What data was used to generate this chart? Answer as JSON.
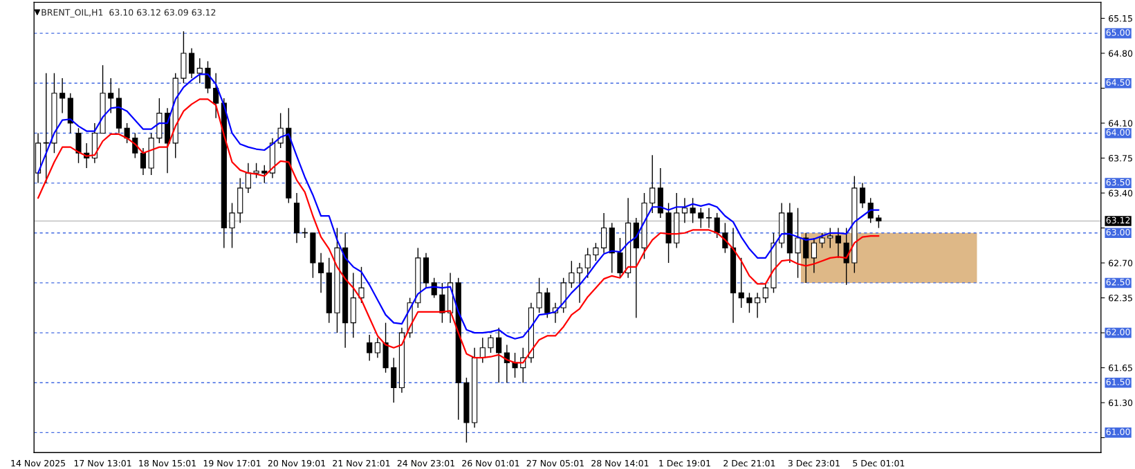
{
  "chart_data": {
    "type": "candlestick",
    "title": "BRENT_OIL,H1  63.10 63.12 63.09 63.12",
    "categories": [
      "14 Nov 2025",
      null,
      null,
      null,
      null,
      null,
      null,
      null,
      "17 Nov 13:01",
      null,
      null,
      null,
      null,
      null,
      null,
      null,
      "18 Nov 15:01",
      null,
      null,
      null,
      null,
      null,
      null,
      null,
      "19 Nov 17:01",
      null,
      null,
      null,
      null,
      null,
      null,
      null,
      "20 Nov 19:01",
      null,
      null,
      null,
      null,
      null,
      null,
      null,
      "21 Nov 21:01",
      null,
      null,
      null,
      null,
      null,
      null,
      null,
      "24 Nov 23:01",
      null,
      null,
      null,
      null,
      null,
      null,
      null,
      "26 Nov 01:01",
      null,
      null,
      null,
      null,
      null,
      null,
      null,
      "27 Nov 05:01",
      null,
      null,
      null,
      null,
      null,
      null,
      null,
      "28 Nov 14:01",
      null,
      null,
      null,
      null,
      null,
      null,
      null,
      "1 Dec 19:01",
      null,
      null,
      null,
      null,
      null,
      null,
      null,
      "2 Dec 21:01",
      null,
      null,
      null,
      null,
      null,
      null,
      null,
      "3 Dec 23:01",
      null,
      null,
      null,
      null,
      null,
      null,
      null,
      "5 Dec 01:01",
      null,
      null,
      null,
      null,
      null,
      null,
      null,
      null,
      null,
      null,
      null,
      null,
      null,
      null,
      null,
      null,
      null,
      null,
      null,
      null,
      null,
      null,
      null,
      null,
      null,
      null,
      null
    ],
    "ohlc": [
      [
        63.6,
        64.0,
        63.5,
        63.9
      ],
      [
        63.9,
        64.6,
        63.5,
        63.9
      ],
      [
        63.9,
        64.6,
        63.8,
        64.4
      ],
      [
        64.4,
        64.55,
        64.2,
        64.35
      ],
      [
        64.35,
        64.4,
        64.0,
        64.1
      ],
      [
        64.0,
        64.05,
        63.7,
        63.8
      ],
      [
        63.8,
        63.9,
        63.65,
        63.75
      ],
      [
        63.75,
        64.1,
        63.7,
        64.0
      ],
      [
        64.0,
        64.68,
        64.0,
        64.4
      ],
      [
        64.4,
        64.55,
        64.2,
        64.35
      ],
      [
        64.35,
        64.45,
        64.0,
        64.05
      ],
      [
        64.05,
        64.1,
        63.9,
        63.95
      ],
      [
        63.95,
        64.0,
        63.75,
        63.8
      ],
      [
        63.8,
        63.85,
        63.58,
        63.65
      ],
      [
        63.65,
        64.0,
        63.58,
        63.95
      ],
      [
        63.95,
        64.35,
        63.9,
        64.2
      ],
      [
        64.2,
        64.25,
        63.6,
        63.9
      ],
      [
        63.9,
        64.6,
        63.75,
        64.55
      ],
      [
        64.55,
        65.02,
        64.5,
        64.8
      ],
      [
        64.8,
        64.85,
        64.55,
        64.6
      ],
      [
        64.6,
        64.75,
        64.5,
        64.65
      ],
      [
        64.65,
        64.72,
        64.4,
        64.45
      ],
      [
        64.45,
        64.6,
        64.15,
        64.3
      ],
      [
        64.3,
        64.35,
        62.85,
        63.05
      ],
      [
        63.05,
        63.3,
        62.85,
        63.2
      ],
      [
        63.2,
        63.55,
        63.1,
        63.45
      ],
      [
        63.45,
        63.7,
        63.4,
        63.6
      ],
      [
        63.6,
        63.7,
        63.55,
        63.62
      ],
      [
        63.62,
        63.68,
        63.5,
        63.6
      ],
      [
        63.6,
        63.95,
        63.55,
        63.9
      ],
      [
        63.9,
        64.2,
        63.85,
        64.05
      ],
      [
        64.05,
        64.25,
        63.3,
        63.35
      ],
      [
        63.3,
        63.4,
        62.9,
        63.0
      ],
      [
        63.0,
        63.05,
        62.95,
        63.0
      ],
      [
        63.0,
        63.0,
        62.55,
        62.7
      ],
      [
        62.7,
        62.8,
        62.4,
        62.6
      ],
      [
        62.6,
        62.75,
        62.1,
        62.2
      ],
      [
        62.2,
        63.05,
        62.0,
        62.85
      ],
      [
        62.85,
        63.0,
        61.85,
        62.1
      ],
      [
        62.1,
        62.6,
        61.95,
        62.35
      ],
      [
        62.35,
        62.66,
        62.3,
        62.45
      ],
      [
        61.9,
        61.98,
        61.72,
        61.8
      ],
      [
        61.8,
        61.95,
        61.75,
        61.9
      ],
      [
        61.9,
        62.1,
        61.6,
        61.65
      ],
      [
        61.65,
        61.75,
        61.3,
        61.45
      ],
      [
        61.45,
        62.05,
        61.4,
        62.0
      ],
      [
        62.0,
        62.35,
        61.95,
        62.3
      ],
      [
        62.3,
        62.85,
        62.25,
        62.75
      ],
      [
        62.75,
        62.8,
        62.45,
        62.5
      ],
      [
        62.5,
        62.55,
        62.35,
        62.38
      ],
      [
        62.38,
        62.5,
        62.1,
        62.2
      ],
      [
        62.2,
        62.6,
        62.1,
        62.5
      ],
      [
        62.5,
        62.55,
        61.13,
        61.5
      ],
      [
        61.5,
        61.55,
        60.9,
        61.1
      ],
      [
        61.1,
        61.85,
        61.05,
        61.75
      ],
      [
        61.75,
        61.95,
        61.7,
        61.85
      ],
      [
        61.85,
        61.98,
        61.8,
        61.95
      ],
      [
        61.95,
        62.05,
        61.5,
        61.8
      ],
      [
        61.8,
        61.88,
        61.5,
        61.7
      ],
      [
        61.7,
        61.8,
        61.55,
        61.65
      ],
      [
        61.65,
        61.85,
        61.5,
        61.75
      ],
      [
        61.75,
        62.3,
        61.7,
        62.25
      ],
      [
        62.25,
        62.55,
        62.2,
        62.4
      ],
      [
        62.4,
        62.45,
        62.15,
        62.2
      ],
      [
        62.2,
        62.3,
        62.1,
        62.25
      ],
      [
        62.25,
        62.55,
        62.2,
        62.5
      ],
      [
        62.5,
        62.72,
        62.45,
        62.6
      ],
      [
        62.6,
        62.7,
        62.3,
        62.65
      ],
      [
        62.65,
        62.85,
        62.55,
        62.78
      ],
      [
        62.78,
        62.9,
        62.72,
        62.85
      ],
      [
        62.85,
        63.2,
        62.8,
        63.05
      ],
      [
        63.05,
        63.1,
        62.6,
        62.8
      ],
      [
        62.8,
        62.95,
        62.55,
        62.6
      ],
      [
        62.6,
        63.35,
        62.55,
        63.1
      ],
      [
        63.1,
        63.15,
        62.15,
        62.85
      ],
      [
        62.85,
        63.4,
        62.74,
        63.3
      ],
      [
        63.3,
        63.78,
        63.2,
        63.45
      ],
      [
        63.45,
        63.65,
        63.15,
        63.2
      ],
      [
        63.2,
        63.3,
        62.7,
        62.9
      ],
      [
        62.9,
        63.4,
        62.85,
        63.2
      ],
      [
        63.2,
        63.35,
        63.1,
        63.25
      ],
      [
        63.25,
        63.35,
        63.1,
        63.2
      ],
      [
        63.2,
        63.25,
        63.05,
        63.15
      ],
      [
        63.15,
        63.25,
        63.05,
        63.15
      ],
      [
        63.15,
        63.2,
        62.95,
        63.0
      ],
      [
        63.0,
        63.1,
        62.8,
        62.85
      ],
      [
        62.85,
        63.05,
        62.1,
        62.4
      ],
      [
        62.4,
        62.75,
        62.25,
        62.35
      ],
      [
        62.35,
        62.4,
        62.2,
        62.3
      ],
      [
        62.3,
        62.4,
        62.15,
        62.35
      ],
      [
        62.35,
        62.5,
        62.3,
        62.45
      ],
      [
        62.45,
        63.0,
        62.4,
        62.9
      ],
      [
        62.9,
        63.3,
        62.85,
        63.2
      ],
      [
        63.2,
        63.3,
        62.7,
        62.8
      ],
      [
        62.8,
        63.25,
        62.55,
        62.95
      ],
      [
        62.95,
        63.0,
        62.5,
        62.75
      ],
      [
        62.75,
        62.95,
        62.6,
        62.9
      ],
      [
        62.9,
        63.0,
        62.85,
        62.95
      ],
      [
        62.95,
        63.05,
        62.85,
        62.97
      ],
      [
        62.97,
        63.05,
        62.75,
        62.9
      ],
      [
        62.9,
        63.05,
        62.48,
        62.7
      ],
      [
        62.7,
        63.57,
        62.6,
        63.45
      ],
      [
        63.45,
        63.5,
        63.25,
        63.3
      ],
      [
        63.3,
        63.35,
        63.1,
        63.15
      ],
      [
        63.15,
        63.18,
        63.05,
        63.12
      ],
      null,
      null,
      null,
      null,
      null,
      null,
      null,
      null,
      null,
      null,
      null,
      null,
      null,
      null,
      null,
      null,
      null,
      null,
      null,
      null,
      null,
      null,
      null,
      null,
      null,
      null,
      null
    ],
    "series": [
      {
        "type": "line",
        "color": "#0000ff",
        "values": [
          63.6,
          63.8,
          64.0,
          64.13,
          64.14,
          64.07,
          64.02,
          64.02,
          64.16,
          64.25,
          64.26,
          64.22,
          64.13,
          64.04,
          64.04,
          64.1,
          64.1,
          64.34,
          64.46,
          64.53,
          64.59,
          64.59,
          64.49,
          64.28,
          64.0,
          63.89,
          63.86,
          63.84,
          63.83,
          63.89,
          63.96,
          63.99,
          63.77,
          63.56,
          63.38,
          63.17,
          63.17,
          62.93,
          62.75,
          62.66,
          62.61,
          62.48,
          62.33,
          62.18,
          62.1,
          62.09,
          62.24,
          62.39,
          62.45,
          62.46,
          62.45,
          62.46,
          62.21,
          62.03,
          62.0,
          62.0,
          62.01,
          62.03,
          61.97,
          61.94,
          61.96,
          62.06,
          62.18,
          62.19,
          62.21,
          62.3,
          62.4,
          62.48,
          62.58,
          62.69,
          62.79,
          62.82,
          62.81,
          62.9,
          62.96,
          63.11,
          63.26,
          63.26,
          63.23,
          63.26,
          63.26,
          63.29,
          63.27,
          63.29,
          63.26,
          63.17,
          63.11,
          62.96,
          62.84,
          62.75,
          62.75,
          62.87,
          62.99,
          62.99,
          62.96,
          62.93,
          62.94,
          62.97,
          63.0,
          63.0,
          62.99,
          63.11,
          63.17,
          63.23,
          63.23,
          null,
          null,
          null,
          null,
          null,
          null,
          null,
          null,
          null,
          null,
          null,
          null,
          null,
          null,
          null,
          null,
          null,
          null,
          null,
          null,
          null,
          null,
          null,
          null,
          null,
          null,
          null
        ]
      },
      {
        "type": "line",
        "color": "#ff0000",
        "values": [
          63.35,
          63.53,
          63.71,
          63.86,
          63.86,
          63.81,
          63.77,
          63.78,
          63.92,
          63.99,
          63.99,
          63.95,
          63.89,
          63.8,
          63.83,
          63.86,
          63.86,
          64.07,
          64.22,
          64.29,
          64.34,
          64.34,
          64.28,
          63.98,
          63.71,
          63.63,
          63.6,
          63.59,
          63.57,
          63.65,
          63.72,
          63.71,
          63.53,
          63.41,
          63.17,
          62.96,
          62.84,
          62.66,
          62.54,
          62.45,
          62.33,
          62.15,
          61.97,
          61.88,
          61.85,
          61.88,
          62.06,
          62.21,
          62.21,
          62.21,
          62.21,
          62.22,
          62.0,
          61.79,
          61.75,
          61.75,
          61.76,
          61.78,
          61.73,
          61.7,
          61.7,
          61.82,
          61.93,
          61.97,
          61.97,
          62.06,
          62.18,
          62.24,
          62.36,
          62.45,
          62.54,
          62.57,
          62.55,
          62.66,
          62.66,
          62.81,
          62.93,
          63.0,
          62.99,
          62.99,
          63.0,
          63.03,
          63.03,
          63.03,
          63.0,
          62.93,
          62.84,
          62.72,
          62.57,
          62.49,
          62.49,
          62.63,
          62.72,
          62.73,
          62.69,
          62.67,
          62.69,
          62.72,
          62.75,
          62.76,
          62.75,
          62.9,
          62.96,
          62.97,
          62.97,
          null,
          null,
          null,
          null,
          null,
          null,
          null,
          null,
          null,
          null,
          null,
          null,
          null,
          null,
          null,
          null,
          null,
          null,
          null,
          null,
          null,
          null,
          null,
          null,
          null,
          null,
          null
        ]
      }
    ],
    "ylim": [
      60.8,
      65.31
    ],
    "yticks": [
      {
        "value": 60.95,
        "label": null
      },
      {
        "value": 61.3,
        "label": "61.30"
      },
      61.65,
      {
        "value": 62.0,
        "label": null
      },
      62.35,
      {
        "value": 62.7,
        "label": "62.70"
      },
      {
        "value": 63.05,
        "label": null
      },
      {
        "value": 63.4,
        "label": "63.40"
      },
      63.75,
      {
        "value": 64.1,
        "label": "64.10"
      },
      {
        "value": 64.45,
        "label": null
      },
      {
        "value": 64.8,
        "label": "64.80"
      },
      65.15
    ],
    "ref_lines": [
      {
        "axis": "y",
        "value": 65.0,
        "label": "65.00",
        "color": "#4169e1",
        "line_style": "dashed"
      },
      {
        "axis": "y",
        "value": 64.5,
        "label": "64.50",
        "color": "#4169e1",
        "line_style": "dashed"
      },
      {
        "axis": "y",
        "value": 64.0,
        "label": "64.00",
        "color": "#4169e1",
        "line_style": "dashed"
      },
      {
        "axis": "y",
        "value": 63.5,
        "label": "63.50",
        "color": "#4169e1",
        "line_style": "dashed"
      },
      {
        "axis": "y",
        "value": 63.12,
        "label": "63.12",
        "color": "#c0c0c0",
        "line_style": "solid"
      },
      {
        "axis": "y",
        "value": 63.0,
        "label": "63.00",
        "color": "#4169e1",
        "line_style": "dashed"
      },
      {
        "axis": "y",
        "value": 62.5,
        "label": "62.50",
        "color": "#4169e1",
        "line_style": "dashed"
      },
      {
        "axis": "y",
        "value": 62.0,
        "label": "62.00",
        "color": "#4169e1",
        "line_style": "dashed"
      },
      {
        "axis": "y",
        "value": 61.5,
        "label": "61.50",
        "color": "#4169e1",
        "line_style": "dashed"
      },
      {
        "axis": "y",
        "value": 61.0,
        "label": "61.00",
        "color": "#4169e1",
        "line_style": "dashed"
      }
    ],
    "bands": [
      {
        "axis": "y",
        "from": 62.5,
        "to": 63.0,
        "color": "#deb887"
      }
    ],
    "grid": false,
    "legend": false
  }
}
